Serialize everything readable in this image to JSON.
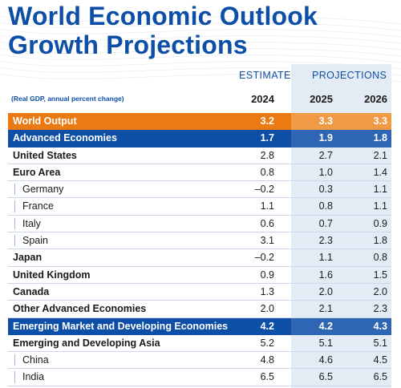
{
  "title": {
    "line1": "World Economic Outlook",
    "line2": "Growth Projections"
  },
  "headers": {
    "estimate": "ESTIMATE",
    "projections": "PROJECTIONS",
    "note": "(Real GDP, annual percent change)",
    "years": [
      "2024",
      "2025",
      "2026"
    ]
  },
  "colors": {
    "brand_blue": "#0d4ea6",
    "world_orange": "#ec7a12",
    "projection_shade": "#e3ebf5"
  },
  "rows": [
    {
      "label": "World Output",
      "values": [
        "3.2",
        "3.3",
        "3.3"
      ]
    },
    {
      "label": "Advanced Economies",
      "values": [
        "1.7",
        "1.9",
        "1.8"
      ]
    },
    {
      "label": "United States",
      "values": [
        "2.8",
        "2.7",
        "2.1"
      ]
    },
    {
      "label": "Euro Area",
      "values": [
        "0.8",
        "1.0",
        "1.4"
      ]
    },
    {
      "label": "Germany",
      "values": [
        "–0.2",
        "0.3",
        "1.1"
      ]
    },
    {
      "label": "France",
      "values": [
        "1.1",
        "0.8",
        "1.1"
      ]
    },
    {
      "label": "Italy",
      "values": [
        "0.6",
        "0.7",
        "0.9"
      ]
    },
    {
      "label": "Spain",
      "values": [
        "3.1",
        "2.3",
        "1.8"
      ]
    },
    {
      "label": "Japan",
      "values": [
        "–0.2",
        "1.1",
        "0.8"
      ]
    },
    {
      "label": "United Kingdom",
      "values": [
        "0.9",
        "1.6",
        "1.5"
      ]
    },
    {
      "label": "Canada",
      "values": [
        "1.3",
        "2.0",
        "2.0"
      ]
    },
    {
      "label": "Other Advanced Economies",
      "values": [
        "2.0",
        "2.1",
        "2.3"
      ]
    },
    {
      "label": "Emerging Market and Developing Economies",
      "values": [
        "4.2",
        "4.2",
        "4.3"
      ]
    },
    {
      "label": "Emerging and Developing Asia",
      "values": [
        "5.2",
        "5.1",
        "5.1"
      ]
    },
    {
      "label": "China",
      "values": [
        "4.8",
        "4.6",
        "4.5"
      ]
    },
    {
      "label": "India",
      "values": [
        "6.5",
        "6.5",
        "6.5"
      ]
    }
  ]
}
